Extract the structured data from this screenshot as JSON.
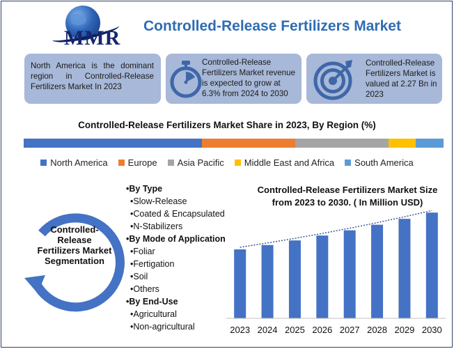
{
  "header": {
    "logo_text": "MMR",
    "title": "Controlled-Release Fertilizers Market"
  },
  "info_boxes": [
    {
      "text": "North America is the dominant region in Controlled-Release Fertilizers Market In 2023",
      "icon": "none"
    },
    {
      "text": "Controlled-Release Fertilizers Market revenue is expected to grow at 6.3% from 2024 to 2030",
      "icon": "stopwatch-icon"
    },
    {
      "text": "Controlled-Release Fertilizers Market is valued at 2.27 Bn in 2023",
      "icon": "target-icon"
    }
  ],
  "share": {
    "title": "Controlled-Release Fertilizers Market Share in 2023, By Region (%)",
    "segments": [
      {
        "name": "North America",
        "share": 42,
        "color": "#4472c4"
      },
      {
        "name": "Europe",
        "share": 22,
        "color": "#ed7d31"
      },
      {
        "name": "Asia Pacific",
        "share": 22,
        "color": "#a5a5a5"
      },
      {
        "name": "Middle East and Africa",
        "share": 6.5,
        "color": "#ffc000"
      },
      {
        "name": "South America",
        "share": 6.5,
        "color": "#5b9bd5"
      }
    ]
  },
  "segmentation": {
    "ring_label": "Controlled-Release Fertilizers Market Segmentation",
    "groups": [
      {
        "heading": "•By Type",
        "items": [
          "•Slow-Release",
          "•Coated & Encapsulated",
          "•N-Stabilizers"
        ]
      },
      {
        "heading": "•By Mode of Application",
        "items": [
          "•Foliar",
          "•Fertigation",
          "•Soil",
          "•Others"
        ]
      },
      {
        "heading": "•By End-Use",
        "items": [
          "•Agricultural",
          "•Non-agricultural"
        ]
      }
    ]
  },
  "colors": {
    "bar": "#4472c4",
    "ring": "#4472c4",
    "info_box": "#a7b8d8",
    "title": "#2f6cb4"
  },
  "chart_data": {
    "type": "bar",
    "title": "Controlled-Release Fertilizers Market Size from 2023 to 2030. ( In Million USD)",
    "categories": [
      "2023",
      "2024",
      "2025",
      "2026",
      "2027",
      "2028",
      "2029",
      "2030"
    ],
    "values": [
      2270,
      2413,
      2565,
      2726,
      2898,
      3081,
      3275,
      3481
    ],
    "ylim": [
      0,
      3600
    ],
    "trendline": true,
    "grid": false,
    "xlabel": "",
    "ylabel": ""
  }
}
